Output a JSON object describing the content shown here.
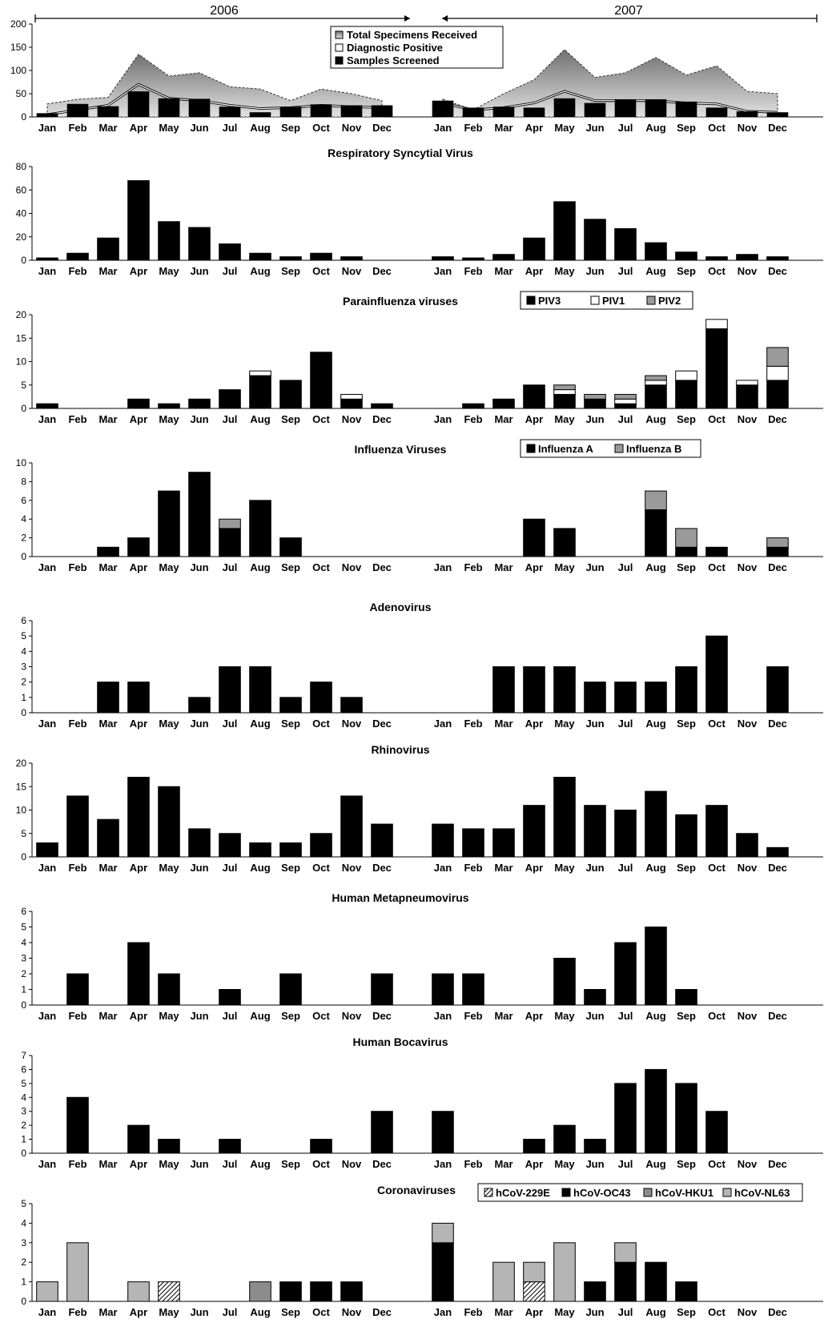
{
  "years": [
    "2006",
    "2007"
  ],
  "months": [
    "Jan",
    "Feb",
    "Mar",
    "Apr",
    "May",
    "Jun",
    "Jul",
    "Aug",
    "Sep",
    "Oct",
    "Nov",
    "Dec"
  ],
  "colors": {
    "black": "#000000",
    "white": "#ffffff",
    "gray": "#9a9a9a",
    "light_gray": "#b5b5b5",
    "mid_gray": "#8c8c8c",
    "area_top": "#6f6f6f",
    "area_bottom": "#e2e2e2"
  },
  "chart_data": [
    {
      "id": "overview",
      "type": "area",
      "title": "",
      "ylim": [
        0,
        200
      ],
      "yticks": [
        0,
        50,
        100,
        150,
        200
      ],
      "legend": [
        "Total Specimens Received",
        "Diagnostic Positive",
        "Samples Screened"
      ],
      "series": [
        {
          "name": "Total Specimens Received",
          "kind": "area",
          "values_2006": [
            28,
            38,
            42,
            135,
            88,
            95,
            65,
            60,
            35,
            60,
            50,
            35
          ],
          "values_2007": [
            38,
            15,
            50,
            80,
            145,
            85,
            95,
            128,
            90,
            110,
            55,
            50
          ]
        },
        {
          "name": "Diagnostic Positive",
          "kind": "line",
          "values_2006": [
            5,
            15,
            25,
            70,
            40,
            35,
            25,
            18,
            20,
            25,
            22,
            20
          ],
          "values_2007": [
            30,
            15,
            20,
            30,
            55,
            35,
            35,
            35,
            30,
            28,
            12,
            10
          ]
        },
        {
          "name": "Samples Screened",
          "kind": "bar",
          "values_2006": [
            8,
            28,
            23,
            55,
            40,
            39,
            22,
            10,
            22,
            27,
            25,
            25
          ],
          "values_2007": [
            35,
            20,
            22,
            20,
            40,
            30,
            38,
            38,
            33,
            20,
            12,
            10
          ]
        }
      ]
    },
    {
      "id": "rsv",
      "type": "bar",
      "title": "Respiratory Syncytial Virus",
      "ylim": [
        0,
        80
      ],
      "yticks": [
        0,
        20,
        40,
        60,
        80
      ],
      "legend": [],
      "series": [
        {
          "name": "",
          "values_2006": [
            2,
            6,
            19,
            68,
            33,
            28,
            14,
            6,
            3,
            6,
            3,
            0
          ],
          "values_2007": [
            3,
            2,
            5,
            19,
            50,
            35,
            27,
            15,
            7,
            3,
            5,
            3
          ]
        }
      ]
    },
    {
      "id": "piv",
      "type": "bar",
      "stacked": true,
      "title": "Parainfluenza viruses",
      "ylim": [
        0,
        20
      ],
      "yticks": [
        0,
        5,
        10,
        15,
        20
      ],
      "legend": [
        "PIV3",
        "PIV1",
        "PIV2"
      ],
      "series": [
        {
          "name": "PIV3",
          "values_2006": [
            1,
            0,
            0,
            2,
            1,
            2,
            4,
            7,
            6,
            12,
            2,
            1
          ],
          "values_2007": [
            0,
            1,
            2,
            5,
            3,
            2,
            1,
            5,
            6,
            17,
            5,
            6
          ]
        },
        {
          "name": "PIV1",
          "values_2006": [
            0,
            0,
            0,
            0,
            0,
            0,
            0,
            1,
            0,
            0,
            1,
            0
          ],
          "values_2007": [
            0,
            0,
            0,
            0,
            1,
            0,
            1,
            1,
            2,
            2,
            1,
            3
          ]
        },
        {
          "name": "PIV2",
          "values_2006": [
            0,
            0,
            0,
            0,
            0,
            0,
            0,
            0,
            0,
            0,
            0,
            0
          ],
          "values_2007": [
            0,
            0,
            0,
            0,
            1,
            1,
            1,
            1,
            0,
            0,
            0,
            4
          ]
        }
      ]
    },
    {
      "id": "influenza",
      "type": "bar",
      "stacked": true,
      "title": "Influenza Viruses",
      "ylim": [
        0,
        10
      ],
      "yticks": [
        0,
        2,
        4,
        6,
        8,
        10
      ],
      "legend": [
        "Influenza A",
        "Influenza B"
      ],
      "series": [
        {
          "name": "Influenza A",
          "values_2006": [
            0,
            0,
            1,
            2,
            7,
            9,
            3,
            6,
            2,
            0,
            0,
            0
          ],
          "values_2007": [
            0,
            0,
            0,
            4,
            3,
            0,
            0,
            5,
            1,
            1,
            0,
            1
          ]
        },
        {
          "name": "Influenza B",
          "values_2006": [
            0,
            0,
            0,
            0,
            0,
            0,
            1,
            0,
            0,
            0,
            0,
            0
          ],
          "values_2007": [
            0,
            0,
            0,
            0,
            0,
            0,
            0,
            2,
            2,
            0,
            0,
            1
          ]
        }
      ]
    },
    {
      "id": "adenovirus",
      "type": "bar",
      "title": "Adenovirus",
      "ylim": [
        0,
        6
      ],
      "yticks": [
        0,
        1,
        2,
        3,
        4,
        5,
        6
      ],
      "small_ticks": true,
      "legend": [],
      "series": [
        {
          "name": "",
          "values_2006": [
            0,
            0,
            2,
            2,
            0,
            1,
            3,
            3,
            1,
            2,
            1,
            0
          ],
          "values_2007": [
            0,
            0,
            3,
            3,
            3,
            2,
            2,
            2,
            3,
            5,
            0,
            3
          ]
        }
      ]
    },
    {
      "id": "rhinovirus",
      "type": "bar",
      "title": "Rhinovirus",
      "ylim": [
        0,
        20
      ],
      "yticks": [
        0,
        5,
        10,
        15,
        20
      ],
      "legend": [],
      "series": [
        {
          "name": "",
          "values_2006": [
            3,
            13,
            8,
            17,
            15,
            6,
            5,
            3,
            3,
            5,
            13,
            7
          ],
          "values_2007": [
            7,
            6,
            6,
            11,
            17,
            11,
            10,
            14,
            9,
            11,
            5,
            2
          ]
        }
      ]
    },
    {
      "id": "hmpv",
      "type": "bar",
      "title": "Human Metapneumovirus",
      "ylim": [
        0,
        6
      ],
      "yticks": [
        0,
        1,
        2,
        3,
        4,
        5,
        6
      ],
      "legend": [],
      "series": [
        {
          "name": "",
          "values_2006": [
            0,
            2,
            0,
            4,
            2,
            0,
            1,
            0,
            2,
            0,
            0,
            2
          ],
          "values_2007": [
            2,
            2,
            0,
            0,
            3,
            1,
            4,
            5,
            1,
            0,
            0,
            0
          ]
        }
      ]
    },
    {
      "id": "bocavirus",
      "type": "bar",
      "title": "Human Bocavirus",
      "ylim": [
        0,
        7
      ],
      "yticks": [
        0,
        1,
        2,
        3,
        4,
        5,
        6,
        7
      ],
      "legend": [],
      "series": [
        {
          "name": "",
          "values_2006": [
            0,
            4,
            0,
            2,
            1,
            0,
            1,
            0,
            0,
            1,
            0,
            3
          ],
          "values_2007": [
            3,
            0,
            0,
            1,
            2,
            1,
            5,
            6,
            5,
            3,
            0,
            0
          ]
        }
      ]
    },
    {
      "id": "coronavirus",
      "type": "bar",
      "stacked": true,
      "title": "Coronaviruses",
      "ylim": [
        0,
        5
      ],
      "yticks": [
        0,
        1,
        2,
        3,
        4,
        5
      ],
      "legend": [
        "hCoV-229E",
        "hCoV-OC43",
        "hCoV-HKU1",
        "hCoV-NL63"
      ],
      "series": [
        {
          "name": "hCoV-229E",
          "values_2006": [
            0,
            0,
            0,
            0,
            1,
            0,
            0,
            0,
            0,
            0,
            0,
            0
          ],
          "values_2007": [
            0,
            0,
            0,
            1,
            0,
            0,
            0,
            0,
            0,
            0,
            0,
            0
          ]
        },
        {
          "name": "hCoV-OC43",
          "values_2006": [
            0,
            0,
            0,
            0,
            0,
            0,
            0,
            0,
            1,
            1,
            1,
            0
          ],
          "values_2007": [
            3,
            0,
            0,
            0,
            0,
            1,
            2,
            2,
            1,
            0,
            0,
            0
          ]
        },
        {
          "name": "hCoV-HKU1",
          "values_2006": [
            0,
            0,
            0,
            0,
            0,
            0,
            0,
            1,
            0,
            0,
            0,
            0
          ],
          "values_2007": [
            0,
            0,
            0,
            0,
            0,
            0,
            0,
            0,
            0,
            0,
            0,
            0
          ]
        },
        {
          "name": "hCoV-NL63",
          "values_2006": [
            1,
            3,
            0,
            1,
            0,
            0,
            0,
            0,
            0,
            0,
            0,
            0
          ],
          "values_2007": [
            1,
            0,
            2,
            1,
            3,
            0,
            1,
            0,
            0,
            0,
            0,
            0
          ]
        }
      ]
    }
  ]
}
